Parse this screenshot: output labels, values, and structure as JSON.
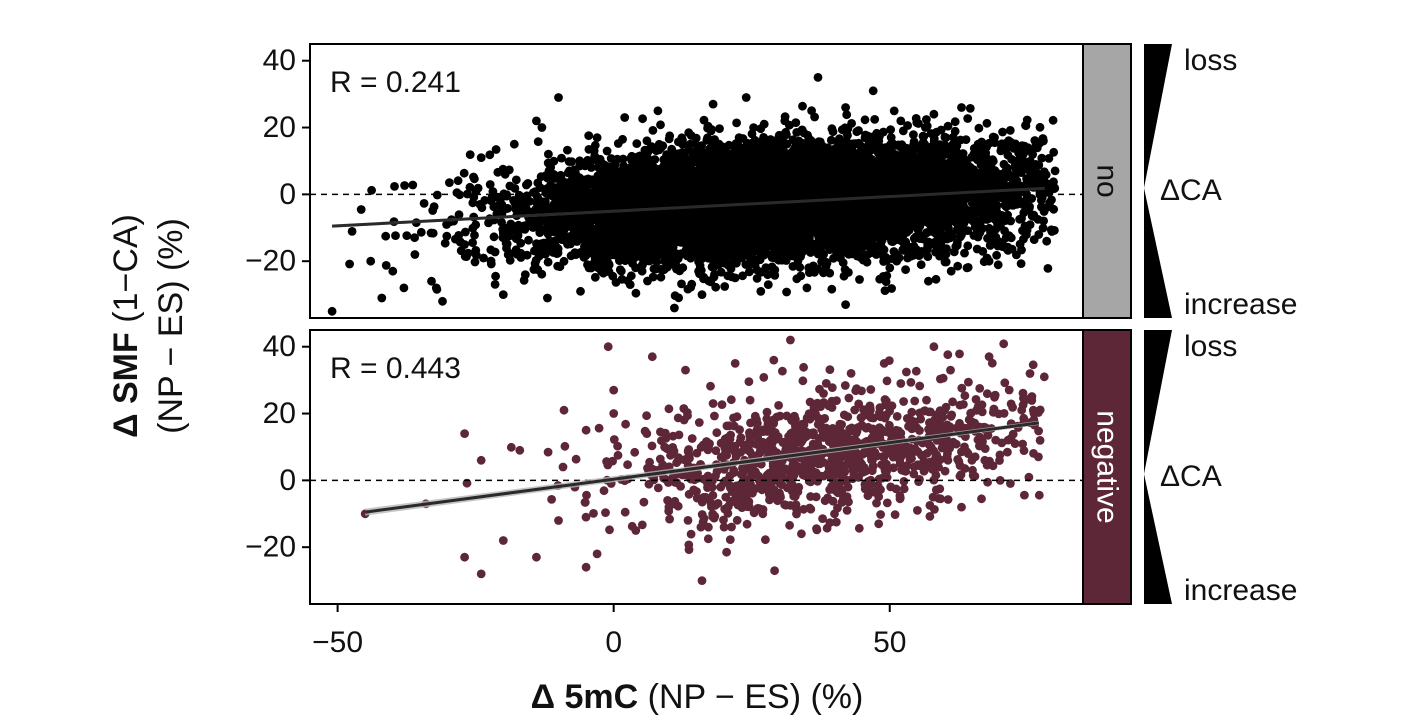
{
  "colors": {
    "frame": "#000000",
    "fit_line": "#2a2a2a",
    "fit_band": "#b8b8b8",
    "ref_line": "#000000"
  },
  "y_axis_label": {
    "bold": "Δ SMF",
    "rest": " (1−CA)",
    "line2": "(NP − ES) (%)"
  },
  "x_axis_label": {
    "bold": "Δ 5mC",
    "rest": " (NP − ES) (%)"
  },
  "side_key": {
    "top": "loss",
    "middle": "ΔCA",
    "bottom": "increase"
  },
  "chart_data": [
    {
      "type": "scatter",
      "facet": "no",
      "facet_color": "#a6a6a6",
      "point_color": "#000000",
      "annotation": "R = 0.241",
      "xlim": [
        -55,
        85
      ],
      "ylim": [
        -37,
        45
      ],
      "xticks": [
        -50,
        0,
        50
      ],
      "xtick_labels": [
        "−50",
        "0",
        "50"
      ],
      "yticks": [
        -20,
        0,
        20,
        40
      ],
      "ytick_labels": [
        "−20",
        "0",
        "20",
        "40"
      ],
      "reference_line_y": 0,
      "fit": {
        "x": [
          -51,
          78
        ],
        "y": [
          -9.5,
          1.8
        ]
      },
      "cloud": {
        "n": 9000,
        "x_range": [
          -51,
          80
        ],
        "center_x": 30,
        "center_y": -2,
        "sd_x": 22,
        "sd_y": 8.5,
        "r": 0.241
      },
      "points": [
        {
          "x": -51,
          "y": -35
        },
        {
          "x": -42,
          "y": -31
        },
        {
          "x": -40,
          "y": -23
        },
        {
          "x": -38,
          "y": -28
        },
        {
          "x": -44,
          "y": -20
        },
        {
          "x": -36,
          "y": -18
        },
        {
          "x": -33,
          "y": -26
        },
        {
          "x": -31,
          "y": -32
        },
        {
          "x": -27,
          "y": -15
        },
        {
          "x": -29,
          "y": -8
        },
        {
          "x": -24,
          "y": 11
        },
        {
          "x": -18,
          "y": 15
        },
        {
          "x": -14,
          "y": 22
        },
        {
          "x": -10,
          "y": 29
        },
        {
          "x": -13,
          "y": 20
        },
        {
          "x": -20,
          "y": -30
        },
        {
          "x": -16,
          "y": -24
        },
        {
          "x": -12,
          "y": -31
        },
        {
          "x": -6,
          "y": -29
        },
        {
          "x": 3,
          "y": -27
        },
        {
          "x": 11,
          "y": -34
        },
        {
          "x": 16,
          "y": -30
        },
        {
          "x": 18,
          "y": 27
        },
        {
          "x": 24,
          "y": 29
        },
        {
          "x": 31,
          "y": 22
        },
        {
          "x": 37,
          "y": 35
        },
        {
          "x": 42,
          "y": 26
        },
        {
          "x": 47,
          "y": 31
        },
        {
          "x": 52,
          "y": 22
        },
        {
          "x": 58,
          "y": 24
        },
        {
          "x": 63,
          "y": 26
        },
        {
          "x": 66,
          "y": 15
        },
        {
          "x": 70,
          "y": 5
        },
        {
          "x": 73,
          "y": -3
        },
        {
          "x": 77,
          "y": -12
        },
        {
          "x": 71,
          "y": -16
        },
        {
          "x": 64,
          "y": -22
        },
        {
          "x": 57,
          "y": -26
        },
        {
          "x": 50,
          "y": -22
        },
        {
          "x": 42,
          "y": -33
        },
        {
          "x": 35,
          "y": -28
        },
        {
          "x": 28,
          "y": -27
        },
        {
          "x": 22,
          "y": -25
        },
        {
          "x": 6,
          "y": -18
        },
        {
          "x": -3,
          "y": 17
        },
        {
          "x": 2,
          "y": 23
        },
        {
          "x": 8,
          "y": 25
        },
        {
          "x": 75,
          "y": 8
        },
        {
          "x": 79,
          "y": 2
        },
        {
          "x": 68,
          "y": -20
        }
      ]
    },
    {
      "type": "scatter",
      "facet": "negative",
      "facet_color": "#5d2738",
      "point_color": "#5d2738",
      "annotation": "R = 0.443",
      "xlim": [
        -55,
        85
      ],
      "ylim": [
        -37,
        45
      ],
      "xticks": [
        -50,
        0,
        50
      ],
      "xtick_labels": [
        "−50",
        "0",
        "50"
      ],
      "yticks": [
        -20,
        0,
        20,
        40
      ],
      "ytick_labels": [
        "−20",
        "0",
        "20",
        "40"
      ],
      "reference_line_y": 0,
      "fit": {
        "x": [
          -45,
          77
        ],
        "y": [
          -9.5,
          17.2
        ]
      },
      "cloud": {
        "n": 1100,
        "x_range": [
          -28,
          78
        ],
        "center_x": 38,
        "center_y": 8,
        "sd_x": 20,
        "sd_y": 10,
        "r": 0.443
      },
      "points": [
        {
          "x": -45,
          "y": -10
        },
        {
          "x": -34,
          "y": -7
        },
        {
          "x": -27,
          "y": 14
        },
        {
          "x": -24,
          "y": 6
        },
        {
          "x": -27,
          "y": -23
        },
        {
          "x": -24,
          "y": -28
        },
        {
          "x": -20,
          "y": -18
        },
        {
          "x": -17,
          "y": 9
        },
        {
          "x": -14,
          "y": -23
        },
        {
          "x": -10,
          "y": -12
        },
        {
          "x": -9,
          "y": 21
        },
        {
          "x": -5,
          "y": 15
        },
        {
          "x": -1,
          "y": 40
        },
        {
          "x": 0,
          "y": 27
        },
        {
          "x": 0,
          "y": 20
        },
        {
          "x": 6,
          "y": 14
        },
        {
          "x": 7,
          "y": 37
        },
        {
          "x": 13,
          "y": 33
        },
        {
          "x": 18,
          "y": 23
        },
        {
          "x": 16,
          "y": -30
        },
        {
          "x": -3,
          "y": -22
        },
        {
          "x": -5,
          "y": -26
        },
        {
          "x": 20,
          "y": -14
        },
        {
          "x": 22,
          "y": 35
        },
        {
          "x": 29,
          "y": 36
        },
        {
          "x": 32,
          "y": 42
        },
        {
          "x": 38,
          "y": 26
        },
        {
          "x": 43,
          "y": 32
        },
        {
          "x": 49,
          "y": 35
        },
        {
          "x": 52,
          "y": 29
        },
        {
          "x": 58,
          "y": 40
        },
        {
          "x": 61,
          "y": 33
        },
        {
          "x": 66,
          "y": 22
        },
        {
          "x": 68,
          "y": 37
        },
        {
          "x": 72,
          "y": 17
        },
        {
          "x": 76,
          "y": 21
        },
        {
          "x": 78,
          "y": 31
        },
        {
          "x": 70,
          "y": 0
        },
        {
          "x": 63,
          "y": -8
        },
        {
          "x": 55,
          "y": -9
        },
        {
          "x": 48,
          "y": -13
        },
        {
          "x": 40,
          "y": -10
        },
        {
          "x": 34,
          "y": -16
        },
        {
          "x": 27,
          "y": -10
        },
        {
          "x": 10,
          "y": -8
        },
        {
          "x": 4,
          "y": -15
        }
      ]
    }
  ]
}
